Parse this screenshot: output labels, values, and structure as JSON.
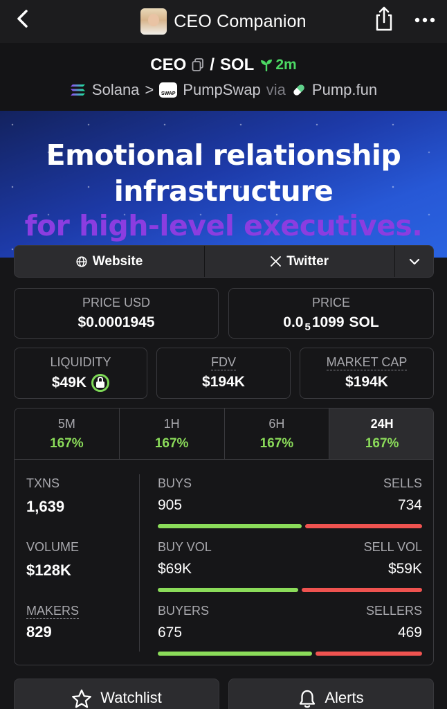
{
  "header": {
    "title": "CEO Companion"
  },
  "pair": {
    "base": "CEO",
    "separator": "/",
    "quote": "SOL",
    "age": "2m",
    "chain": "Solana",
    "chevron": ">",
    "dex": "PumpSwap",
    "via": "via",
    "launchpad": "Pump.fun",
    "swap_badge": "SWAP"
  },
  "banner": {
    "line1": "Emotional relationship",
    "line2": "infrastructure",
    "line3": "for high-level executives."
  },
  "links": {
    "website": "Website",
    "twitter": "Twitter"
  },
  "price_usd": {
    "label": "PRICE USD",
    "value": "$0.0001945"
  },
  "price_native": {
    "label": "PRICE",
    "prefix": "0.0",
    "zeros": "5",
    "digits": "1099",
    "unit": "SOL"
  },
  "liquidity": {
    "label": "LIQUIDITY",
    "value": "$49K"
  },
  "fdv": {
    "label": "FDV",
    "value": "$194K"
  },
  "market_cap": {
    "label": "MARKET CAP",
    "value": "$194K"
  },
  "timeframes": [
    {
      "label": "5M",
      "change": "167%"
    },
    {
      "label": "1H",
      "change": "167%"
    },
    {
      "label": "6H",
      "change": "167%"
    },
    {
      "label": "24H",
      "change": "167%"
    }
  ],
  "txns": {
    "label": "TXNS",
    "value": "1,639",
    "buys_label": "BUYS",
    "buys": "905",
    "sells_label": "SELLS",
    "sells": "734",
    "buy_ratio": 0.552
  },
  "volume": {
    "label": "VOLUME",
    "value": "$128K",
    "buy_label": "BUY VOL",
    "buy": "$69K",
    "sell_label": "SELL VOL",
    "sell": "$59K",
    "buy_ratio": 0.539
  },
  "makers": {
    "label": "MAKERS",
    "value": "829",
    "buyers_label": "BUYERS",
    "buyers": "675",
    "sellers_label": "SELLERS",
    "sellers": "469",
    "buy_ratio": 0.59
  },
  "actions": {
    "watchlist": "Watchlist",
    "alerts": "Alerts"
  },
  "colors": {
    "positive": "#8bdc5a",
    "negative": "#ef5350",
    "age_green": "#4cd964",
    "banner_purple": "#8b3de0"
  }
}
